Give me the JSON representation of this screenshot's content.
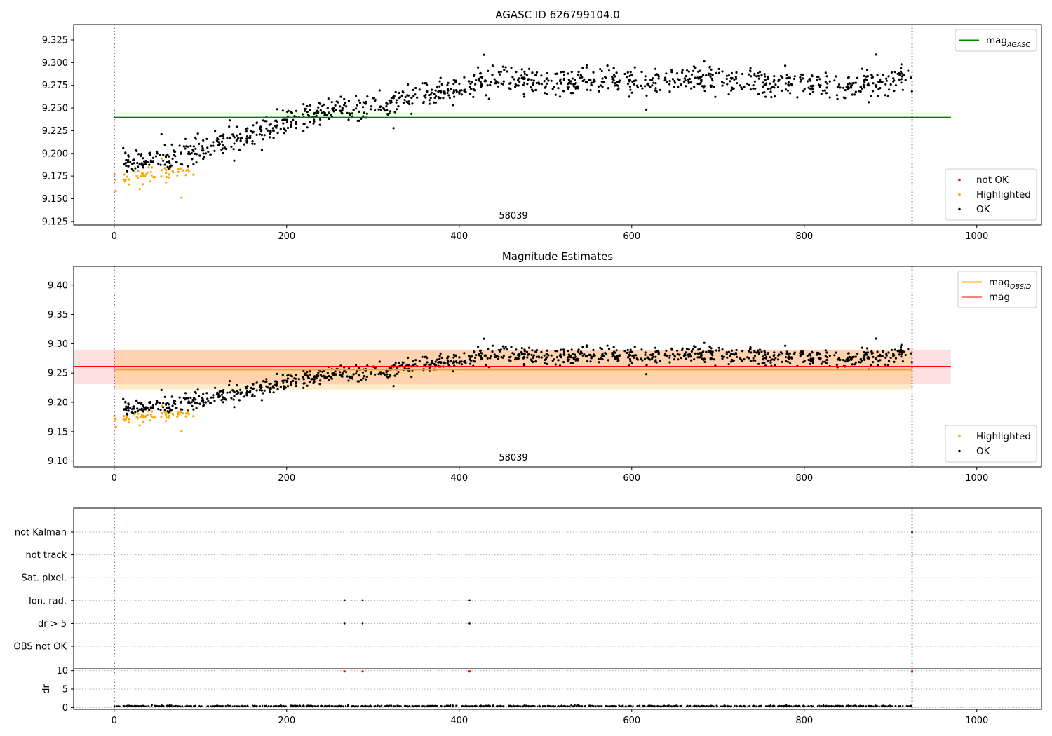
{
  "chart_data": [
    {
      "type": "scatter",
      "title": "AGASC ID 626799104.0",
      "annotation": "58039",
      "xlim": [
        -47,
        1075
      ],
      "ylim": [
        9.121,
        9.342
      ],
      "x_ticks": [
        0,
        200,
        400,
        600,
        800,
        1000
      ],
      "y_ticks": [
        9.125,
        9.15,
        9.175,
        9.2,
        9.225,
        9.25,
        9.275,
        9.3,
        9.325
      ],
      "y_tick_labels": [
        "9.125",
        "9.150",
        "9.175",
        "9.200",
        "9.225",
        "9.250",
        "9.275",
        "9.300",
        "9.325"
      ],
      "vlines": [
        {
          "x": 0,
          "color": "#800080",
          "style": "dotted"
        },
        {
          "x": 925,
          "color": "#800080",
          "style": "dotted"
        }
      ],
      "hlines": [
        {
          "y": 9.2395,
          "x_range": [
            0,
            970
          ],
          "color": "#008000",
          "width": 2
        }
      ],
      "legends": [
        {
          "position": "top-right",
          "entries": [
            {
              "kind": "line",
              "label": "mag",
              "sub": "AGASC",
              "color": "#008000"
            }
          ]
        },
        {
          "position": "bottom-right",
          "entries": [
            {
              "kind": "dot",
              "label": "not OK",
              "color": "#ff0000"
            },
            {
              "kind": "dot",
              "label": "Highlighted",
              "color": "#ffa500"
            },
            {
              "kind": "dot",
              "label": "OK",
              "color": "#000000"
            }
          ]
        }
      ],
      "series": [
        {
          "name": "OK",
          "color": "#000000",
          "x_range": [
            10,
            925
          ],
          "trend": [
            [
              0,
              9.188
            ],
            [
              60,
              9.196
            ],
            [
              120,
              9.208
            ],
            [
              200,
              9.235
            ],
            [
              260,
              9.248
            ],
            [
              300,
              9.252
            ],
            [
              400,
              9.272
            ],
            [
              450,
              9.282
            ],
            [
              520,
              9.279
            ],
            [
              600,
              9.279
            ],
            [
              700,
              9.283
            ],
            [
              760,
              9.276
            ],
            [
              850,
              9.273
            ],
            [
              925,
              9.282
            ]
          ],
          "noise": 0.0075
        },
        {
          "name": "Highlighted",
          "color": "#ffa500",
          "x_range": [
            0,
            95
          ],
          "trend": [
            [
              0,
              9.172
            ],
            [
              60,
              9.18
            ],
            [
              95,
              9.18
            ]
          ],
          "noise": 0.005,
          "outliers": [
            [
              78,
              9.151
            ],
            [
              60,
              9.168
            ]
          ]
        },
        {
          "name": "not OK",
          "color": "#ff0000",
          "values": []
        }
      ]
    },
    {
      "type": "scatter",
      "title": "Magnitude Estimates",
      "annotation": "58039",
      "xlim": [
        -47,
        1075
      ],
      "ylim": [
        9.09,
        9.432
      ],
      "x_ticks": [
        0,
        200,
        400,
        600,
        800,
        1000
      ],
      "y_ticks": [
        9.1,
        9.15,
        9.2,
        9.25,
        9.3,
        9.35,
        9.4
      ],
      "y_tick_labels": [
        "9.10",
        "9.15",
        "9.20",
        "9.25",
        "9.30",
        "9.35",
        "9.40"
      ],
      "vlines": [
        {
          "x": 0,
          "color": "#800080",
          "style": "dotted"
        },
        {
          "x": 925,
          "color": "#800080",
          "style": "dotted"
        }
      ],
      "bands": [
        {
          "y_range": [
            9.231,
            9.29
          ],
          "x_range": [
            -47,
            970
          ],
          "color": "#ff0000",
          "opacity": 0.12
        },
        {
          "y_range": [
            9.222,
            9.289
          ],
          "x_range": [
            0,
            925
          ],
          "color": "#ffa500",
          "opacity": 0.22
        }
      ],
      "hlines": [
        {
          "y": 9.256,
          "x_range": [
            0,
            925
          ],
          "color": "#ffa500",
          "width": 2.5
        },
        {
          "y": 9.261,
          "x_range": [
            -47,
            970
          ],
          "color": "#ff0000",
          "width": 2
        }
      ],
      "legends": [
        {
          "position": "top-right",
          "entries": [
            {
              "kind": "line",
              "label": "mag",
              "sub": "OBSID",
              "color": "#ffa500"
            },
            {
              "kind": "line",
              "label": "mag",
              "sub": "",
              "color": "#ff0000"
            }
          ]
        },
        {
          "position": "bottom-right",
          "entries": [
            {
              "kind": "dot",
              "label": "Highlighted",
              "color": "#ffa500"
            },
            {
              "kind": "dot",
              "label": "OK",
              "color": "#000000"
            }
          ]
        }
      ],
      "series": [
        {
          "name": "OK",
          "color": "#000000",
          "x_range": [
            10,
            925
          ],
          "trend": [
            [
              0,
              9.188
            ],
            [
              60,
              9.196
            ],
            [
              120,
              9.208
            ],
            [
              200,
              9.235
            ],
            [
              260,
              9.248
            ],
            [
              300,
              9.252
            ],
            [
              400,
              9.272
            ],
            [
              450,
              9.282
            ],
            [
              520,
              9.279
            ],
            [
              600,
              9.279
            ],
            [
              700,
              9.283
            ],
            [
              760,
              9.276
            ],
            [
              850,
              9.273
            ],
            [
              925,
              9.282
            ]
          ],
          "noise": 0.0075
        },
        {
          "name": "Highlighted",
          "color": "#ffa500",
          "x_range": [
            0,
            95
          ],
          "trend": [
            [
              0,
              9.172
            ],
            [
              60,
              9.18
            ],
            [
              95,
              9.18
            ]
          ],
          "noise": 0.005,
          "outliers": [
            [
              78,
              9.151
            ],
            [
              60,
              9.168
            ]
          ]
        }
      ]
    },
    {
      "type": "scatter",
      "title": "",
      "xlim": [
        -47,
        1075
      ],
      "x_ticks": [
        0,
        200,
        400,
        600,
        800,
        1000
      ],
      "flags": {
        "categories": [
          "not Kalman",
          "not track",
          "Sat. pixel.",
          "Ion. rad.",
          "dr > 5",
          "OBS not OK"
        ],
        "points": [
          {
            "category": "Ion. rad.",
            "x": [
              267,
              288,
              412
            ]
          },
          {
            "category": "dr > 5",
            "x": [
              267,
              288,
              412
            ]
          },
          {
            "category": "not Kalman",
            "x": [
              925
            ]
          }
        ]
      },
      "vlines": [
        {
          "x": 0,
          "color": "#800080",
          "style": "dotted"
        },
        {
          "x": 925,
          "color": "#800080",
          "style": "dotted"
        }
      ],
      "dr": {
        "ylabel": "dr",
        "ylim": [
          -0.5,
          10.5
        ],
        "y_ticks": [
          0,
          5,
          10
        ],
        "baseline": 0.3,
        "x_range": [
          0,
          925
        ],
        "high_points": {
          "x": [
            267,
            288,
            412,
            925
          ],
          "y": 9.8,
          "color": "#ff0000"
        }
      }
    }
  ]
}
